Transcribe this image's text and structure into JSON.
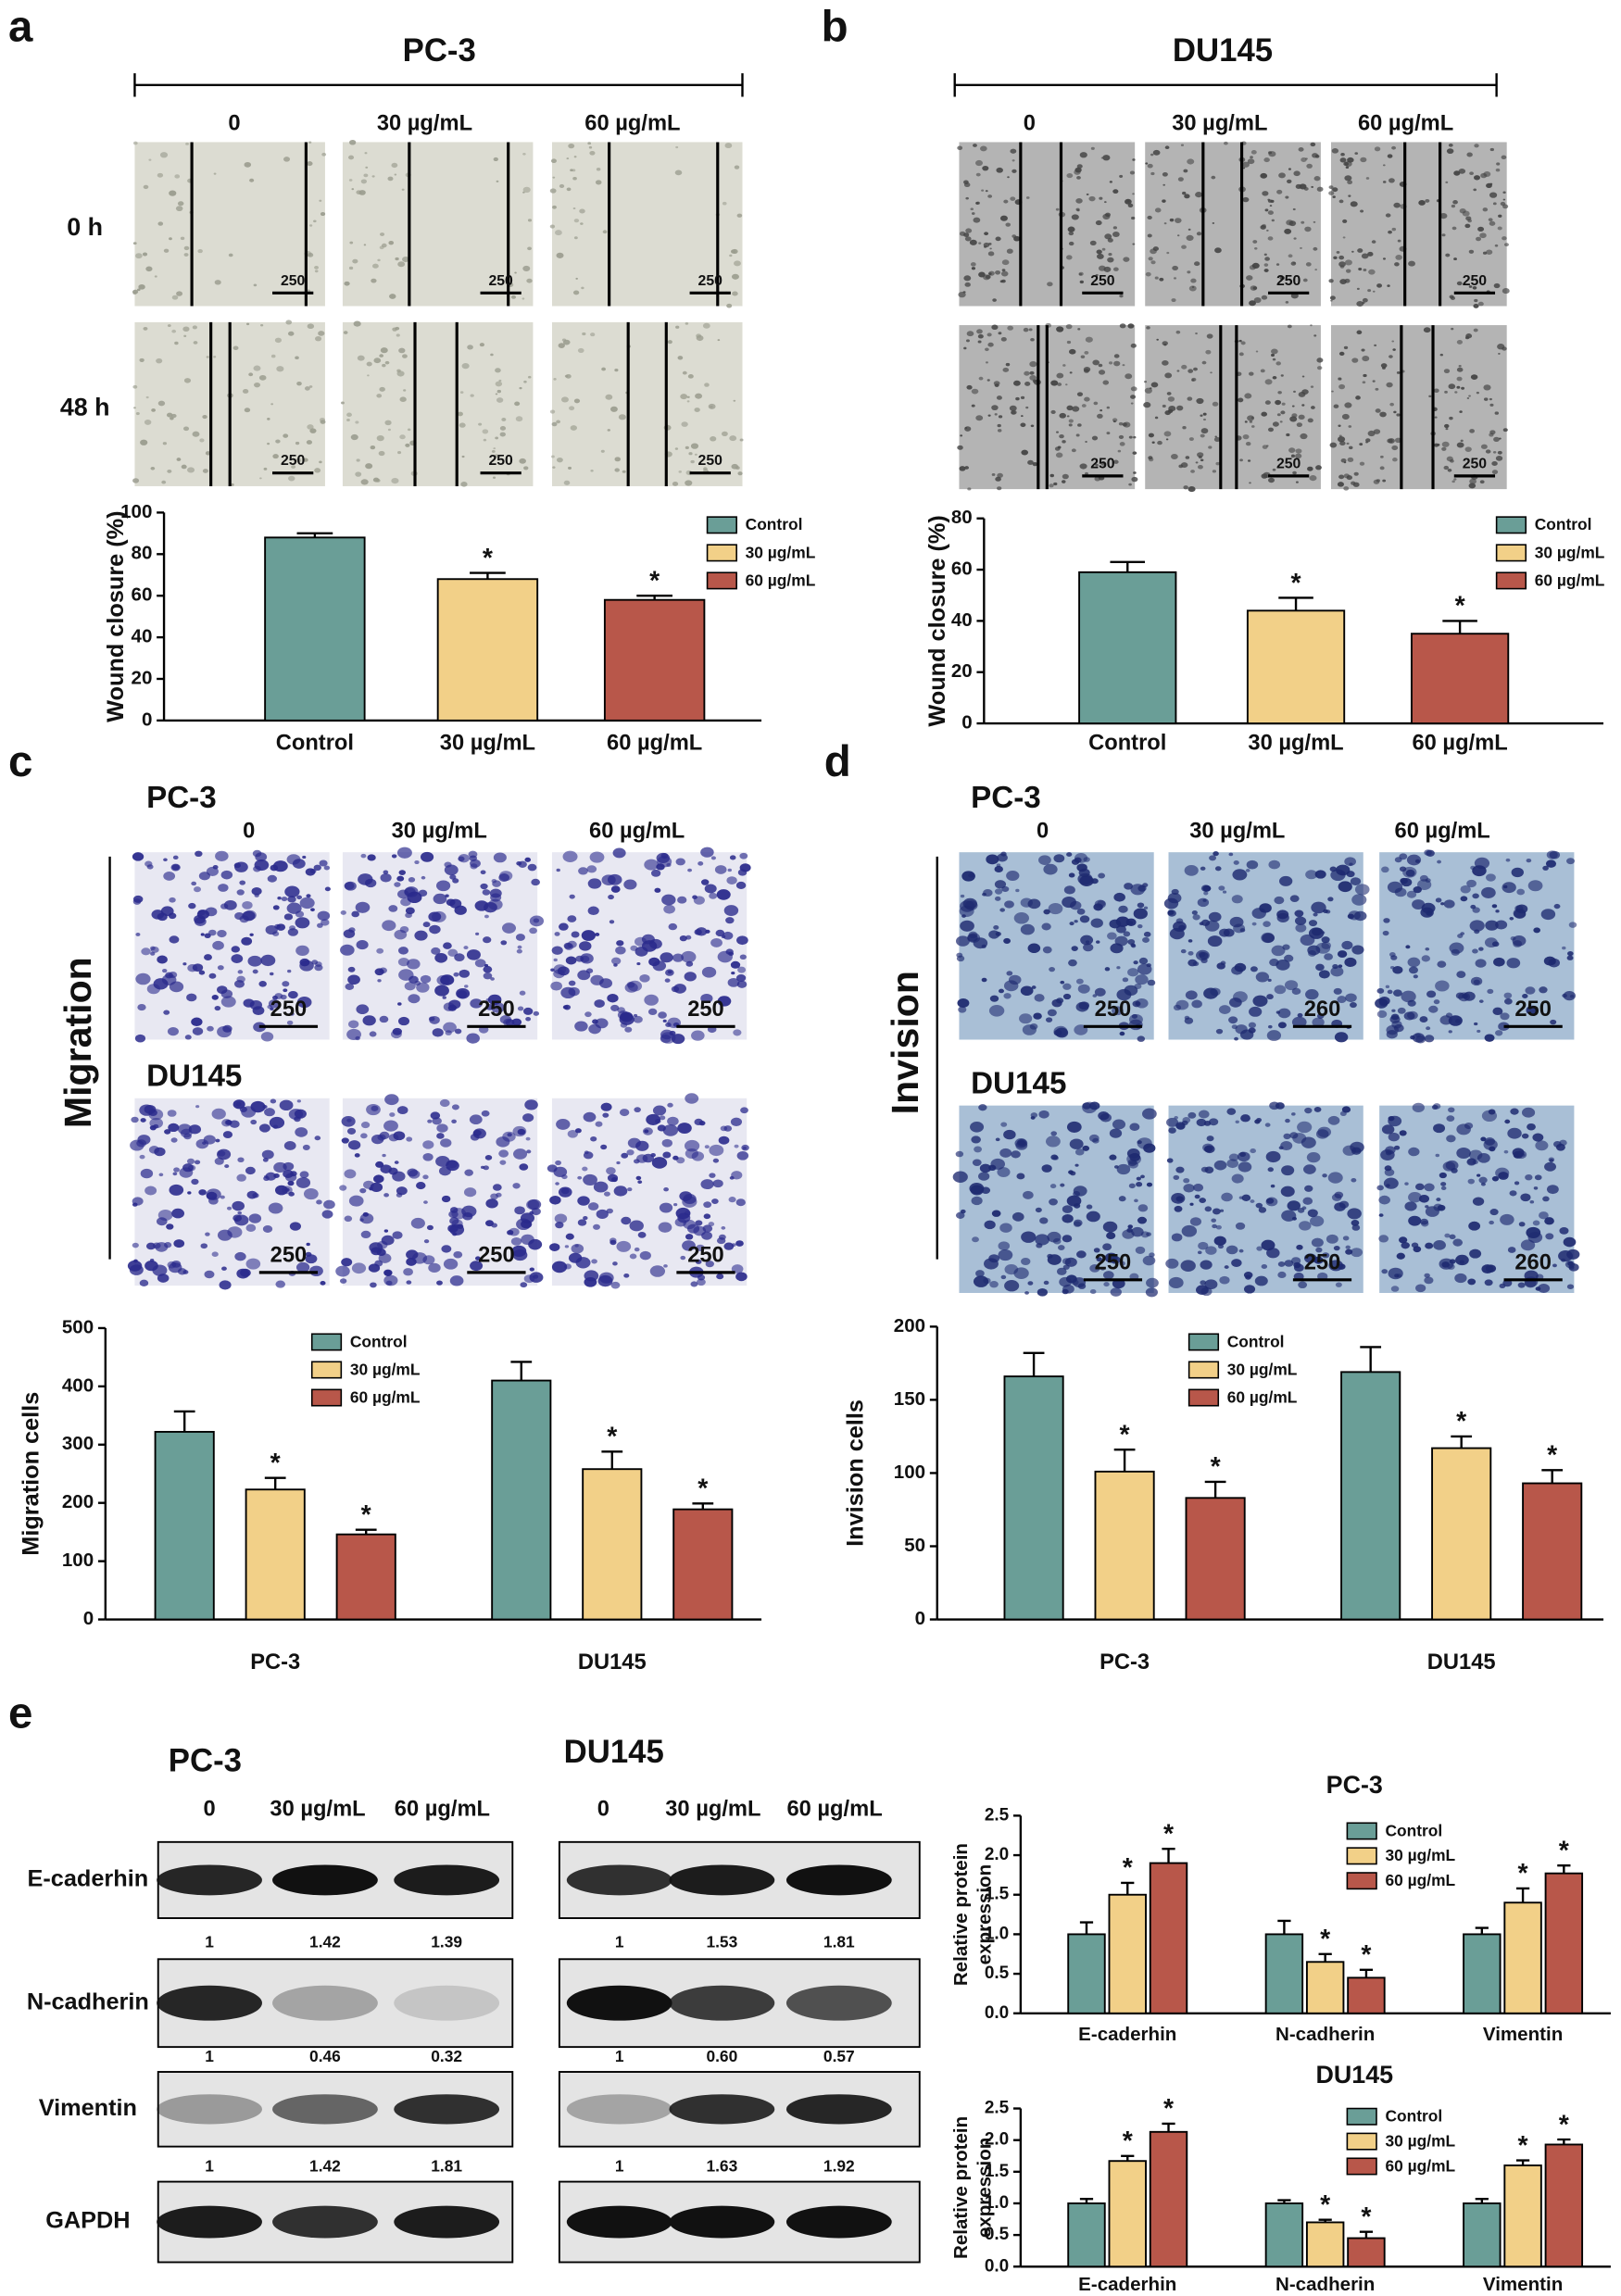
{
  "panels": {
    "a": {
      "label": "a",
      "cell_line": "PC-3",
      "columns": [
        "0",
        "30 µg/mL",
        "60 µg/mL"
      ],
      "rows": [
        "0 h",
        "48 h"
      ],
      "scale_bars": [
        [
          "250",
          "250",
          "250"
        ],
        [
          "250",
          "250",
          "250"
        ]
      ]
    },
    "b": {
      "label": "b",
      "cell_line": "DU145",
      "columns": [
        "0",
        "30 µg/mL",
        "60 µg/mL"
      ],
      "scale_bars": [
        [
          "250",
          "250",
          "250"
        ],
        [
          "250",
          "250",
          "250"
        ]
      ]
    },
    "c": {
      "label": "c",
      "assay": "Migration",
      "columns": [
        "0",
        "30 µg/mL",
        "60 µg/mL"
      ],
      "groups": [
        {
          "name": "PC-3",
          "scale_bars": [
            "250",
            "250",
            "250"
          ]
        },
        {
          "name": "DU145",
          "scale_bars": [
            "250",
            "250",
            "250"
          ]
        }
      ]
    },
    "d": {
      "label": "d",
      "assay": "Invision",
      "columns": [
        "0",
        "30 µg/mL",
        "60 µg/mL"
      ],
      "groups": [
        {
          "name": "PC-3",
          "scale_bars": [
            "250",
            "260",
            "250"
          ]
        },
        {
          "name": "DU145",
          "scale_bars": [
            "250",
            "250",
            "260"
          ]
        }
      ]
    },
    "e": {
      "label": "e",
      "blots": [
        {
          "name": "PC-3",
          "columns": [
            "0",
            "30 µg/mL",
            "60 µg/mL"
          ],
          "rows": [
            {
              "name": "E-caderhin",
              "values": [
                "1",
                "1.42",
                "1.39"
              ]
            },
            {
              "name": "N-cadherin",
              "values": [
                "1",
                "0.46",
                "0.32"
              ]
            },
            {
              "name": "Vimentin",
              "values": [
                "1",
                "1.42",
                "1.81"
              ]
            },
            {
              "name": "GAPDH"
            }
          ]
        },
        {
          "name": "DU145",
          "columns": [
            "0",
            "30 µg/mL",
            "60 µg/mL"
          ],
          "rows": [
            {
              "values": [
                "1",
                "1.53",
                "1.81"
              ]
            },
            {
              "values": [
                "1",
                "0.60",
                "0.57"
              ]
            },
            {
              "values": [
                "1",
                "1.63",
                "1.92"
              ]
            }
          ]
        }
      ]
    }
  },
  "chart_data": [
    {
      "type": "bar",
      "ylabel": "Wound closure (%)",
      "categories": [
        "Control",
        "30 µg/mL",
        "60 µg/mL"
      ],
      "values": [
        88,
        68,
        58
      ],
      "errors": [
        2,
        3,
        2
      ],
      "significance": [
        null,
        "*",
        "*"
      ],
      "colors": [
        "#6a9e97",
        "#f2d088",
        "#b8574a"
      ],
      "ylim": [
        0,
        100
      ],
      "yticks": [
        0,
        20,
        40,
        60,
        80,
        100
      ]
    },
    {
      "type": "bar",
      "ylabel": "Wound closure (%)",
      "categories": [
        "Control",
        "30 µg/mL",
        "60 µg/mL"
      ],
      "values": [
        59,
        44,
        35
      ],
      "errors": [
        4,
        5,
        5
      ],
      "significance": [
        null,
        "*",
        "*"
      ],
      "colors": [
        "#6a9e97",
        "#f2d088",
        "#b8574a"
      ],
      "ylim": [
        0,
        80
      ],
      "yticks": [
        0,
        20,
        40,
        60,
        80
      ]
    },
    {
      "type": "bar",
      "ylabel": "Migration cells",
      "categories": [
        "PC-3",
        "DU145"
      ],
      "series": [
        {
          "name": "Control",
          "color": "#6a9e97",
          "values": [
            322,
            410
          ],
          "errors": [
            35,
            32
          ],
          "significance": [
            null,
            null
          ]
        },
        {
          "name": "30 µg/mL",
          "color": "#f2d088",
          "values": [
            223,
            258
          ],
          "errors": [
            20,
            30
          ],
          "significance": [
            "*",
            "*"
          ]
        },
        {
          "name": "60 µg/mL",
          "color": "#b8574a",
          "values": [
            146,
            189
          ],
          "errors": [
            8,
            10
          ],
          "significance": [
            "*",
            "*"
          ]
        }
      ],
      "ylim": [
        0,
        500
      ],
      "yticks": [
        0,
        100,
        200,
        300,
        400,
        500
      ]
    },
    {
      "type": "bar",
      "ylabel": "Invision cells",
      "categories": [
        "PC-3",
        "DU145"
      ],
      "series": [
        {
          "name": "Control",
          "color": "#6a9e97",
          "values": [
            166,
            169
          ],
          "errors": [
            16,
            17
          ],
          "significance": [
            null,
            null
          ]
        },
        {
          "name": "30 µg/mL",
          "color": "#f2d088",
          "values": [
            101,
            117
          ],
          "errors": [
            15,
            8
          ],
          "significance": [
            "*",
            "*"
          ]
        },
        {
          "name": "60 µg/mL",
          "color": "#b8574a",
          "values": [
            83,
            93
          ],
          "errors": [
            11,
            9
          ],
          "significance": [
            "*",
            "*"
          ]
        }
      ],
      "ylim": [
        0,
        200
      ],
      "yticks": [
        0,
        50,
        100,
        150,
        200
      ]
    },
    {
      "type": "bar",
      "title": "PC-3",
      "ylabel": [
        "Relative protein",
        "expression"
      ],
      "categories": [
        "E-caderhin",
        "N-cadherin",
        "Vimentin"
      ],
      "series": [
        {
          "name": "Control",
          "color": "#6a9e97",
          "values": [
            1.0,
            1.0,
            1.0
          ],
          "errors": [
            0.15,
            0.17,
            0.08
          ],
          "significance": [
            null,
            null,
            null
          ]
        },
        {
          "name": "30 µg/mL",
          "color": "#f2d088",
          "values": [
            1.5,
            0.65,
            1.4
          ],
          "errors": [
            0.15,
            0.1,
            0.18
          ],
          "significance": [
            "*",
            "*",
            "*"
          ]
        },
        {
          "name": "60 µg/mL",
          "color": "#b8574a",
          "values": [
            1.9,
            0.45,
            1.77
          ],
          "errors": [
            0.18,
            0.1,
            0.1
          ],
          "significance": [
            "*",
            "*",
            "*"
          ]
        }
      ],
      "ylim": [
        0,
        2.5
      ],
      "yticks": [
        {
          "value": 0,
          "label": "0.0"
        },
        0.5,
        {
          "value": 1,
          "label": "1.0"
        },
        1.5,
        {
          "value": 2,
          "label": "2.0"
        },
        2.5
      ]
    },
    {
      "type": "bar",
      "title": "DU145",
      "ylabel": [
        "Relative protein",
        "expression"
      ],
      "categories": [
        "E-caderhin",
        "N-cadherin",
        "Vimentin"
      ],
      "series": [
        {
          "name": "Control",
          "color": "#6a9e97",
          "values": [
            1.0,
            1.0,
            1.0
          ],
          "errors": [
            0.07,
            0.05,
            0.07
          ],
          "significance": [
            null,
            null,
            null
          ]
        },
        {
          "name": "30 µg/mL",
          "color": "#f2d088",
          "values": [
            1.67,
            0.7,
            1.6
          ],
          "errors": [
            0.08,
            0.04,
            0.08
          ],
          "significance": [
            "*",
            "*",
            "*"
          ]
        },
        {
          "name": "60 µg/mL",
          "color": "#b8574a",
          "values": [
            2.13,
            0.45,
            1.93
          ],
          "errors": [
            0.13,
            0.1,
            0.08
          ],
          "significance": [
            "*",
            "*",
            "*"
          ]
        }
      ],
      "ylim": [
        0,
        2.5
      ],
      "yticks": [
        {
          "value": 0,
          "label": "0.0"
        },
        0.5,
        {
          "value": 1,
          "label": "1.0"
        },
        1.5,
        {
          "value": 2,
          "label": "2.0"
        },
        2.5
      ]
    }
  ]
}
